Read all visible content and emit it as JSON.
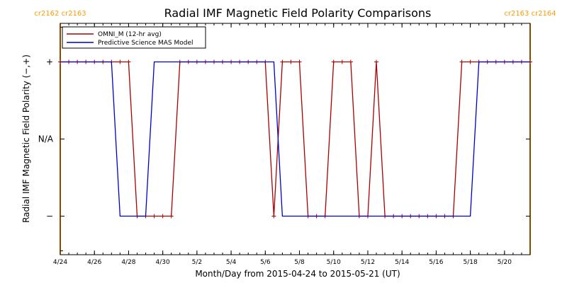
{
  "chart_data": {
    "type": "line",
    "title": "Radial IMF Magnetic Field Polarity Comparisons",
    "xlabel": "Month/Day from 2015-04-24 to 2015-05-21 (UT)",
    "ylabel": "Radial IMF Magnetic Field Polarity (−,+)",
    "xlim": [
      "2015-04-24T00:00",
      "2015-05-21T12:00"
    ],
    "ylim": [
      -1.5,
      1.5
    ],
    "x_ticks": [
      {
        "date": "2015-04-24T00:00",
        "label": "4/24"
      },
      {
        "date": "2015-04-26T00:00",
        "label": "4/26"
      },
      {
        "date": "2015-04-28T00:00",
        "label": "4/28"
      },
      {
        "date": "2015-04-30T00:00",
        "label": "4/30"
      },
      {
        "date": "2015-05-02T00:00",
        "label": "5/2"
      },
      {
        "date": "2015-05-04T00:00",
        "label": "5/4"
      },
      {
        "date": "2015-05-06T00:00",
        "label": "5/6"
      },
      {
        "date": "2015-05-08T00:00",
        "label": "5/8"
      },
      {
        "date": "2015-05-10T00:00",
        "label": "5/10"
      },
      {
        "date": "2015-05-12T00:00",
        "label": "5/12"
      },
      {
        "date": "2015-05-14T00:00",
        "label": "5/14"
      },
      {
        "date": "2015-05-16T00:00",
        "label": "5/16"
      },
      {
        "date": "2015-05-18T00:00",
        "label": "5/18"
      },
      {
        "date": "2015-05-20T00:00",
        "label": "5/20"
      }
    ],
    "y_ticks": [
      {
        "value": 1,
        "label": "+"
      },
      {
        "value": 0,
        "label": "N/A"
      },
      {
        "value": -1,
        "label": "−"
      }
    ],
    "grid": false,
    "legend_position": "top-left",
    "series": [
      {
        "name": "OMNI_M (12-hr avg)",
        "color": "#aa0000",
        "markers": true,
        "points": [
          [
            "2015-04-24T00:00",
            1
          ],
          [
            "2015-04-24T12:00",
            1
          ],
          [
            "2015-04-25T00:00",
            1
          ],
          [
            "2015-04-25T12:00",
            1
          ],
          [
            "2015-04-26T00:00",
            1
          ],
          [
            "2015-04-26T12:00",
            1
          ],
          [
            "2015-04-27T00:00",
            1
          ],
          [
            "2015-04-27T12:00",
            1
          ],
          [
            "2015-04-28T00:00",
            1
          ],
          [
            "2015-04-28T12:00",
            -1
          ],
          [
            "2015-04-29T00:00",
            -1
          ],
          [
            "2015-04-29T12:00",
            -1
          ],
          [
            "2015-04-30T00:00",
            -1
          ],
          [
            "2015-04-30T12:00",
            -1
          ],
          [
            "2015-05-01T00:00",
            1
          ],
          [
            "2015-05-01T12:00",
            1
          ],
          [
            "2015-05-02T00:00",
            1
          ],
          [
            "2015-05-02T12:00",
            1
          ],
          [
            "2015-05-03T00:00",
            1
          ],
          [
            "2015-05-03T12:00",
            1
          ],
          [
            "2015-05-04T00:00",
            1
          ],
          [
            "2015-05-04T12:00",
            1
          ],
          [
            "2015-05-05T00:00",
            1
          ],
          [
            "2015-05-05T12:00",
            1
          ],
          [
            "2015-05-06T00:00",
            1
          ],
          [
            "2015-05-06T12:00",
            -1
          ],
          [
            "2015-05-07T00:00",
            1
          ],
          [
            "2015-05-07T12:00",
            1
          ],
          [
            "2015-05-08T00:00",
            1
          ],
          [
            "2015-05-08T12:00",
            -1
          ],
          [
            "2015-05-09T00:00",
            -1
          ],
          [
            "2015-05-09T12:00",
            -1
          ],
          [
            "2015-05-10T00:00",
            1
          ],
          [
            "2015-05-10T12:00",
            1
          ],
          [
            "2015-05-11T00:00",
            1
          ],
          [
            "2015-05-11T12:00",
            -1
          ],
          [
            "2015-05-12T00:00",
            -1
          ],
          [
            "2015-05-12T12:00",
            1
          ],
          [
            "2015-05-13T00:00",
            -1
          ],
          [
            "2015-05-13T12:00",
            -1
          ],
          [
            "2015-05-14T00:00",
            -1
          ],
          [
            "2015-05-14T12:00",
            -1
          ],
          [
            "2015-05-15T00:00",
            -1
          ],
          [
            "2015-05-15T12:00",
            -1
          ],
          [
            "2015-05-16T00:00",
            -1
          ],
          [
            "2015-05-16T12:00",
            -1
          ],
          [
            "2015-05-17T00:00",
            -1
          ],
          [
            "2015-05-17T12:00",
            1
          ],
          [
            "2015-05-18T00:00",
            1
          ],
          [
            "2015-05-18T12:00",
            1
          ],
          [
            "2015-05-19T00:00",
            1
          ],
          [
            "2015-05-19T12:00",
            1
          ],
          [
            "2015-05-20T00:00",
            1
          ],
          [
            "2015-05-20T12:00",
            1
          ],
          [
            "2015-05-21T00:00",
            1
          ],
          [
            "2015-05-21T12:00",
            1
          ]
        ]
      },
      {
        "name": "Predictive Science MAS Model",
        "color": "#0000cc",
        "markers": false,
        "points": [
          [
            "2015-04-24T00:00",
            1
          ],
          [
            "2015-04-27T00:00",
            1
          ],
          [
            "2015-04-27T12:00",
            -1
          ],
          [
            "2015-04-29T00:00",
            -1
          ],
          [
            "2015-04-29T12:00",
            1
          ],
          [
            "2015-05-06T12:00",
            1
          ],
          [
            "2015-05-07T00:00",
            -1
          ],
          [
            "2015-05-18T00:00",
            -1
          ],
          [
            "2015-05-18T12:00",
            1
          ],
          [
            "2015-05-21T12:00",
            1
          ]
        ]
      }
    ],
    "annotations": [
      {
        "date": "2015-04-24T00:00",
        "text": "cr2162 cr2163",
        "color": "#ff9900"
      },
      {
        "date": "2015-05-21T12:00",
        "text": "cr2163 cr2164",
        "color": "#ff9900"
      }
    ]
  }
}
